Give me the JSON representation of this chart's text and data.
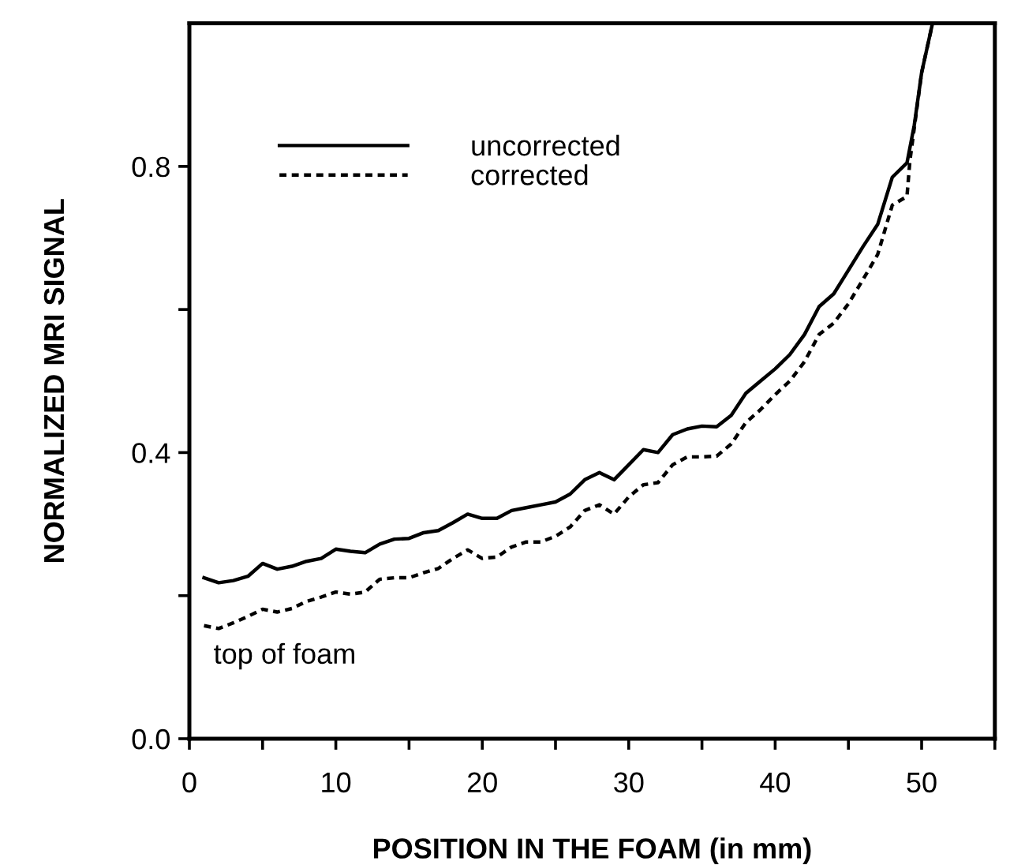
{
  "chart_data": {
    "type": "line",
    "xlabel": "POSITION IN THE FOAM (in mm)",
    "ylabel": "NORMALIZED MRI SIGNAL",
    "annotations": [
      "top of foam"
    ],
    "xlim": [
      0,
      55
    ],
    "ylim": [
      0,
      1.0
    ],
    "xticks": [
      0,
      {
        "value": 5,
        "label": null
      },
      10,
      {
        "value": 15,
        "label": null
      },
      20,
      {
        "value": 25,
        "label": null
      },
      30,
      {
        "value": 35,
        "label": null
      },
      40,
      {
        "value": 45,
        "label": null
      },
      50,
      {
        "value": 55,
        "label": null
      }
    ],
    "yticks": [
      {
        "value": 0,
        "label": "0.0"
      },
      {
        "value": 0.2,
        "label": null
      },
      0.4,
      {
        "value": 0.6,
        "label": null
      },
      0.8
    ],
    "grid": false,
    "legend": "upper left",
    "marker": "none",
    "series": [
      {
        "name": "uncorrected",
        "color": "#000000",
        "line_style": "solid",
        "x": [
          1,
          2,
          3,
          4,
          5,
          6,
          7,
          8,
          9,
          10,
          11,
          12,
          13,
          14,
          15,
          16,
          17,
          18,
          19,
          20,
          21,
          22,
          23,
          24,
          25,
          26,
          27,
          28,
          29,
          30,
          31,
          32,
          33,
          34,
          35,
          36,
          37,
          38,
          39,
          40,
          41,
          42,
          43,
          44,
          45,
          46,
          47,
          48,
          49,
          49.5,
          50,
          50.7
        ],
        "values": [
          0.225,
          0.218,
          0.221,
          0.227,
          0.245,
          0.237,
          0.241,
          0.248,
          0.252,
          0.265,
          0.262,
          0.26,
          0.272,
          0.279,
          0.28,
          0.288,
          0.291,
          0.302,
          0.314,
          0.308,
          0.308,
          0.319,
          0.323,
          0.327,
          0.331,
          0.342,
          0.362,
          0.372,
          0.362,
          0.383,
          0.404,
          0.4,
          0.425,
          0.433,
          0.437,
          0.436,
          0.452,
          0.483,
          0.5,
          0.517,
          0.537,
          0.565,
          0.604,
          0.622,
          0.655,
          0.688,
          0.719,
          0.785,
          0.805,
          0.858,
          0.931,
          0.996
        ]
      },
      {
        "name": "corrected",
        "color": "#000000",
        "line_style": "dotted",
        "x": [
          1,
          2,
          3,
          4,
          5,
          6,
          7,
          8,
          9,
          10,
          11,
          12,
          13,
          14,
          15,
          16,
          17,
          18,
          19,
          20,
          21,
          22,
          23,
          24,
          25,
          26,
          27,
          28,
          29,
          30,
          31,
          32,
          33,
          34,
          35,
          36,
          37,
          38,
          39,
          40,
          41,
          42,
          43,
          44,
          45,
          46,
          47,
          48,
          49,
          49.2,
          50,
          50.7
        ],
        "values": [
          0.158,
          0.154,
          0.162,
          0.171,
          0.181,
          0.177,
          0.182,
          0.192,
          0.198,
          0.205,
          0.202,
          0.205,
          0.223,
          0.225,
          0.225,
          0.232,
          0.238,
          0.252,
          0.264,
          0.252,
          0.254,
          0.268,
          0.275,
          0.275,
          0.283,
          0.296,
          0.319,
          0.327,
          0.314,
          0.338,
          0.355,
          0.358,
          0.383,
          0.394,
          0.394,
          0.395,
          0.412,
          0.442,
          0.46,
          0.481,
          0.5,
          0.527,
          0.565,
          0.581,
          0.608,
          0.642,
          0.677,
          0.746,
          0.758,
          0.808,
          0.931,
          0.996
        ]
      }
    ]
  }
}
